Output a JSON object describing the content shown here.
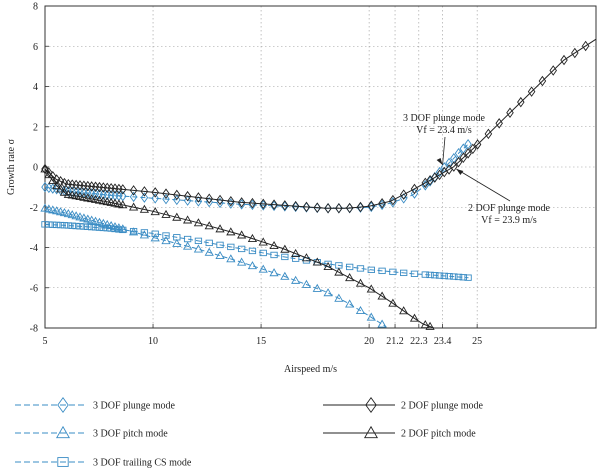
{
  "chart_data": {
    "type": "line",
    "xlabel": "Airspeed m/s",
    "ylabel": "Growth rate σ",
    "xlim": [
      5,
      30.5
    ],
    "ylim": [
      -8,
      8
    ],
    "x_ticks": [
      "5",
      "10",
      "15",
      "20",
      "21.2",
      "22.3",
      "23.4",
      "25"
    ],
    "x_tick_values": [
      5,
      10,
      15,
      20,
      21.2,
      22.3,
      23.4,
      25
    ],
    "y_ticks": [
      "8",
      "6",
      "4",
      "2",
      "0",
      "-2",
      "-4",
      "-6",
      "-8"
    ],
    "y_tick_values": [
      8,
      6,
      4,
      2,
      0,
      -2,
      -4,
      -6,
      -8
    ],
    "grid": true,
    "series": [
      {
        "name": "3 DOF plunge mode",
        "color": "#3a8cc4",
        "dash": true,
        "marker": "diamond",
        "x": [
          5,
          6,
          8,
          10,
          12,
          14,
          16,
          18,
          19,
          20,
          21,
          22,
          22.5,
          23,
          23.4,
          23.8,
          24.2,
          24.6
        ],
        "y": [
          -1.0,
          -1.2,
          -1.4,
          -1.55,
          -1.7,
          -1.85,
          -1.95,
          -2.05,
          -2.05,
          -2.0,
          -1.8,
          -1.4,
          -1.0,
          -0.55,
          -0.1,
          0.3,
          0.75,
          1.15
        ]
      },
      {
        "name": "3 DOF pitch mode",
        "color": "#3a8cc4",
        "dash": true,
        "marker": "triangle",
        "x": [
          5,
          6,
          8,
          10,
          12,
          14,
          16,
          18,
          19,
          20,
          20.8
        ],
        "y": [
          -2.05,
          -2.3,
          -2.9,
          -3.5,
          -4.05,
          -4.7,
          -5.4,
          -6.2,
          -6.75,
          -7.4,
          -7.95
        ]
      },
      {
        "name": "3 DOF trailing CS mode",
        "color": "#3a8cc4",
        "dash": true,
        "marker": "square",
        "x": [
          5,
          6,
          8,
          10,
          12,
          14,
          16,
          18,
          20,
          22,
          24,
          24.6
        ],
        "y": [
          -2.85,
          -2.9,
          -3.05,
          -3.3,
          -3.65,
          -4.05,
          -4.45,
          -4.8,
          -5.1,
          -5.3,
          -5.45,
          -5.5
        ]
      },
      {
        "name": "2 DOF plunge mode",
        "color": "#222222",
        "dash": false,
        "marker": "diamond",
        "x": [
          5,
          5.5,
          6,
          8,
          10,
          12,
          14,
          16,
          18,
          19,
          20,
          21,
          22,
          23,
          23.9,
          25,
          26,
          27,
          28,
          29,
          30.5
        ],
        "y": [
          -0.1,
          -0.6,
          -0.85,
          -1.05,
          -1.25,
          -1.5,
          -1.75,
          -1.9,
          -2.05,
          -2.05,
          -1.95,
          -1.7,
          -1.15,
          -0.55,
          0.0,
          1.1,
          2.15,
          3.2,
          4.25,
          5.3,
          6.35
        ]
      },
      {
        "name": "2 DOF pitch mode",
        "color": "#222222",
        "dash": false,
        "marker": "triangle",
        "x": [
          5,
          5.5,
          6,
          8,
          10,
          12,
          14,
          16,
          18,
          20,
          21,
          22,
          22.5,
          23
        ],
        "y": [
          -0.1,
          -0.9,
          -1.35,
          -1.75,
          -2.2,
          -2.75,
          -3.35,
          -4.05,
          -4.9,
          -6.0,
          -6.7,
          -7.45,
          -7.8,
          -8.0
        ]
      }
    ],
    "annotations": [
      {
        "lines": [
          "3 DOF plunge mode",
          "Vf = 23.4 m/s"
        ],
        "x": 23.4,
        "y": 0.0
      },
      {
        "lines": [
          "2 DOF plunge mode",
          "Vf = 23.9 m/s"
        ],
        "x": 23.9,
        "y": 0.0
      }
    ],
    "legend_placement": "bottom"
  }
}
